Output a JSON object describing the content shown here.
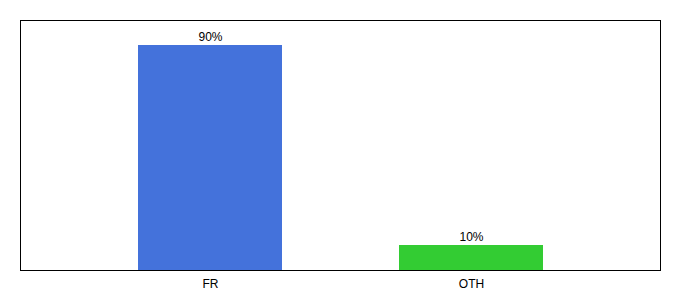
{
  "chart_data": {
    "type": "bar",
    "categories": [
      "FR",
      "OTH"
    ],
    "values": [
      90,
      10
    ],
    "value_labels": [
      "90%",
      "10%"
    ],
    "colors": [
      "#4472db",
      "#33cc33"
    ],
    "ylim": [
      0,
      100
    ],
    "grid": false,
    "tick_labels": "x",
    "data_labels": true
  }
}
